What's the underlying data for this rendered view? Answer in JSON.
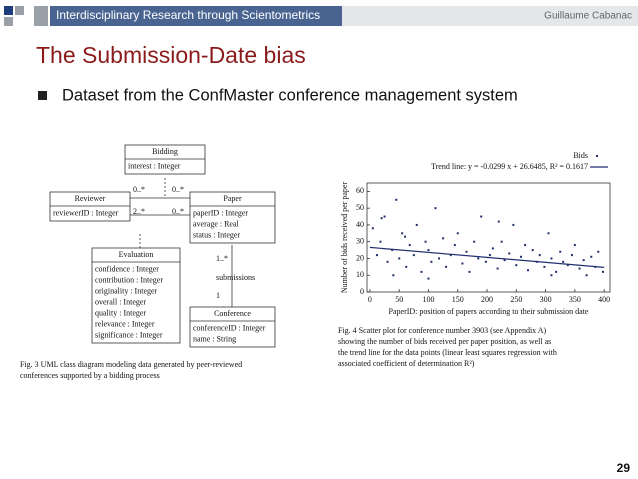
{
  "header": {
    "course": "Interdisciplinary Research through Scientometrics",
    "author": "Guillaume Cabanac"
  },
  "title": "The Submission-Date bias",
  "bullets": [
    "Dataset from the ConfMaster conference management system"
  ],
  "uml": {
    "classes": [
      {
        "name": "Bidding",
        "attributes": [
          "interest : Integer"
        ]
      },
      {
        "name": "Reviewer",
        "attributes": [
          "reviewerID : Integer"
        ]
      },
      {
        "name": "Paper",
        "attributes": [
          "paperID : Integer",
          "average : Real",
          "status : Integer"
        ]
      },
      {
        "name": "Evaluation",
        "attributes": [
          "confidence : Integer",
          "contribution : Integer",
          "originality : Integer",
          "overall : Integer",
          "quality : Integer",
          "relevance : Integer",
          "significance : Integer"
        ]
      },
      {
        "name": "Conference",
        "attributes": [
          "conferenceID : Integer",
          "name : String"
        ]
      }
    ],
    "multiplicities": [
      "0..*",
      "0..*",
      "2..*",
      "0..*",
      "1..*",
      "1"
    ],
    "relation": "submissions",
    "caption": [
      "Fig. 3  UML class diagram modeling data generated by peer-reviewed",
      "conferences supported by a bidding process"
    ]
  },
  "chart_data": {
    "type": "scatter",
    "trend_label": "Trend line: y = -0.0299 x + 26.6485, R² = 0.1617",
    "legend": "Bids",
    "color": "#1f2f6e",
    "xlabel": "PaperID: position of papers according to their submission date",
    "ylabel": "Number of bids received per paper",
    "xlim": [
      -5,
      410
    ],
    "ylim": [
      0,
      65
    ],
    "xticks": [
      0,
      50,
      100,
      150,
      200,
      250,
      300,
      350,
      400
    ],
    "yticks": [
      0,
      10,
      20,
      30,
      40,
      50,
      60
    ],
    "x": [
      5,
      12,
      18,
      25,
      30,
      38,
      45,
      50,
      55,
      62,
      68,
      75,
      80,
      88,
      95,
      100,
      105,
      112,
      118,
      125,
      130,
      138,
      145,
      150,
      158,
      165,
      170,
      178,
      185,
      190,
      198,
      205,
      210,
      218,
      225,
      230,
      238,
      245,
      250,
      258,
      265,
      270,
      278,
      285,
      290,
      298,
      305,
      310,
      318,
      325,
      330,
      338,
      345,
      350,
      358,
      365,
      370,
      378,
      385,
      390,
      398,
      40,
      100,
      220,
      60,
      20,
      310
    ],
    "y": [
      38,
      22,
      30,
      45,
      18,
      25,
      55,
      20,
      35,
      15,
      28,
      22,
      40,
      12,
      30,
      25,
      18,
      50,
      20,
      32,
      15,
      22,
      28,
      35,
      17,
      24,
      12,
      30,
      20,
      45,
      18,
      22,
      26,
      14,
      30,
      19,
      23,
      40,
      16,
      21,
      28,
      13,
      25,
      18,
      22,
      15,
      35,
      20,
      12,
      24,
      18,
      16,
      22,
      28,
      14,
      19,
      10,
      21,
      15,
      24,
      12,
      10,
      8,
      42,
      33,
      44,
      10
    ],
    "trend_line": {
      "x": [
        0,
        400
      ],
      "y": [
        26.6,
        14.7
      ]
    },
    "caption": [
      "Fig. 4  Scatter plot for conference number 3903 (see Appendix A)",
      "showing the number of bids received per paper position, as well as",
      "the trend line for the data points (linear least squares regression with",
      "associated coefficient of determination R²)"
    ]
  },
  "page_number": "29"
}
